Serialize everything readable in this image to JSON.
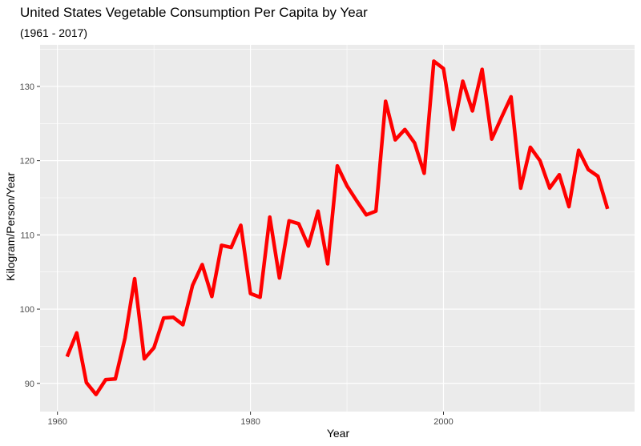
{
  "chart_data": {
    "type": "line",
    "title": "United States Vegetable Consumption Per Capita by Year",
    "subtitle": "(1961 - 2017)",
    "xlabel": "Year",
    "ylabel": "Kilogram/Person/Year",
    "xlim": [
      1958.2,
      2019.8
    ],
    "ylim": [
      86.2,
      135.6
    ],
    "x_ticks": [
      1960,
      1980,
      2000
    ],
    "y_ticks": [
      90,
      100,
      110,
      120,
      130
    ],
    "grid": true,
    "line_color": "#ff0000",
    "panel_color": "#ebebeb",
    "x": [
      1961,
      1962,
      1963,
      1964,
      1965,
      1966,
      1967,
      1968,
      1969,
      1970,
      1971,
      1972,
      1973,
      1974,
      1975,
      1976,
      1977,
      1978,
      1979,
      1980,
      1981,
      1982,
      1983,
      1984,
      1985,
      1986,
      1987,
      1988,
      1989,
      1990,
      1991,
      1992,
      1993,
      1994,
      1995,
      1996,
      1997,
      1998,
      1999,
      2000,
      2001,
      2002,
      2003,
      2004,
      2005,
      2006,
      2007,
      2008,
      2009,
      2010,
      2011,
      2012,
      2013,
      2014,
      2015,
      2016,
      2017
    ],
    "y": [
      93.6,
      96.8,
      90.1,
      88.5,
      90.5,
      90.6,
      96.1,
      104.1,
      93.3,
      94.8,
      98.8,
      98.9,
      97.9,
      103.2,
      106.0,
      101.7,
      108.6,
      108.3,
      111.3,
      102.1,
      101.6,
      112.4,
      104.2,
      111.9,
      111.5,
      108.5,
      113.2,
      106.1,
      119.3,
      116.6,
      114.6,
      112.7,
      113.2,
      128.0,
      122.8,
      124.2,
      122.4,
      118.3,
      133.4,
      132.4,
      124.2,
      130.7,
      126.7,
      132.3,
      122.9,
      125.8,
      128.6,
      116.3,
      121.8,
      120.0,
      116.3,
      118.1,
      113.8,
      121.4,
      118.8,
      117.9,
      113.5
    ]
  }
}
